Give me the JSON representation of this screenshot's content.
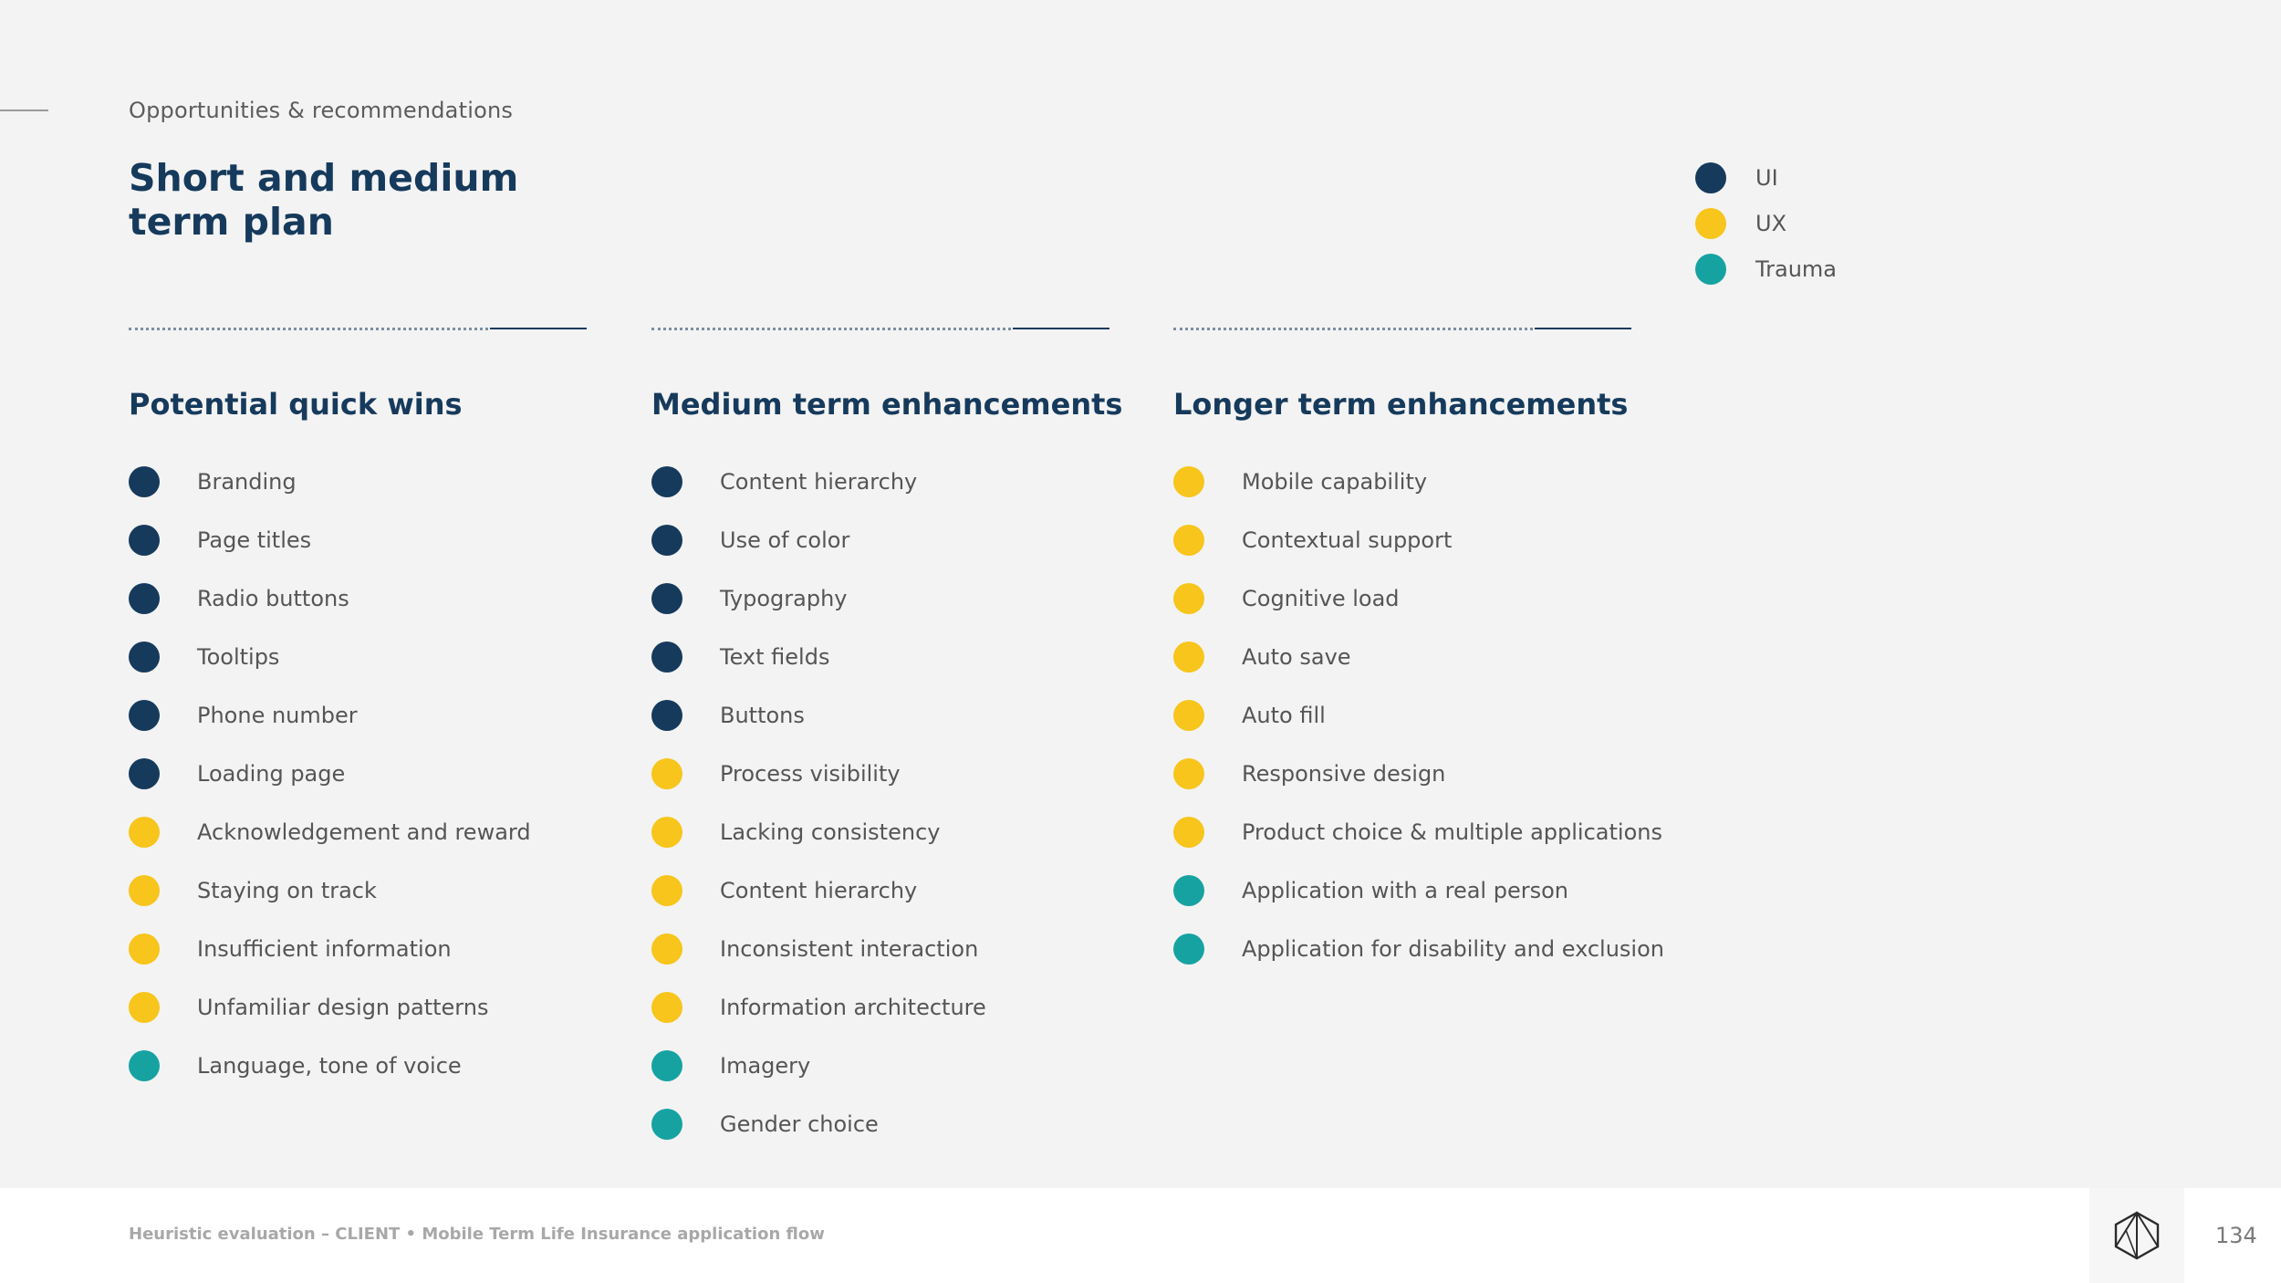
{
  "colors": {
    "UI": "#163a5c",
    "UX": "#f7c51b",
    "Trauma": "#17a2a2"
  },
  "eyebrow": "Opportunities & recommendations",
  "title_line1": "Short and medium",
  "title_line2": "term plan",
  "legend": [
    {
      "label": "UI",
      "category": "UI"
    },
    {
      "label": "UX",
      "category": "UX"
    },
    {
      "label": "Trauma",
      "category": "Trauma"
    }
  ],
  "columns": [
    {
      "heading": "Potential quick wins",
      "items": [
        {
          "label": "Branding",
          "category": "UI"
        },
        {
          "label": "Page titles",
          "category": "UI"
        },
        {
          "label": "Radio buttons",
          "category": "UI"
        },
        {
          "label": "Tooltips",
          "category": "UI"
        },
        {
          "label": "Phone number",
          "category": "UI"
        },
        {
          "label": "Loading page",
          "category": "UI"
        },
        {
          "label": "Acknowledgement and reward",
          "category": "UX"
        },
        {
          "label": "Staying on track",
          "category": "UX"
        },
        {
          "label": "Insufficient information",
          "category": "UX"
        },
        {
          "label": "Unfamiliar design patterns",
          "category": "UX"
        },
        {
          "label": "Language, tone of voice",
          "category": "Trauma"
        }
      ]
    },
    {
      "heading": "Medium term enhancements",
      "items": [
        {
          "label": "Content hierarchy",
          "category": "UI"
        },
        {
          "label": "Use of color",
          "category": "UI"
        },
        {
          "label": "Typography",
          "category": "UI"
        },
        {
          "label": "Text fields",
          "category": "UI"
        },
        {
          "label": "Buttons",
          "category": "UI"
        },
        {
          "label": "Process visibility",
          "category": "UX"
        },
        {
          "label": "Lacking consistency",
          "category": "UX"
        },
        {
          "label": "Content hierarchy",
          "category": "UX"
        },
        {
          "label": "Inconsistent interaction",
          "category": "UX"
        },
        {
          "label": "Information architecture",
          "category": "UX"
        },
        {
          "label": "Imagery",
          "category": "Trauma"
        },
        {
          "label": "Gender choice",
          "category": "Trauma"
        }
      ]
    },
    {
      "heading": "Longer term enhancements",
      "items": [
        {
          "label": "Mobile capability",
          "category": "UX"
        },
        {
          "label": "Contextual support",
          "category": "UX"
        },
        {
          "label": "Cognitive load",
          "category": "UX"
        },
        {
          "label": "Auto save",
          "category": "UX"
        },
        {
          "label": "Auto fill",
          "category": "UX"
        },
        {
          "label": "Responsive design",
          "category": "UX"
        },
        {
          "label": "Product choice & multiple applications",
          "category": "UX"
        },
        {
          "label": "Application with a real person",
          "category": "Trauma"
        },
        {
          "label": "Application for disability and exclusion",
          "category": "Trauma"
        }
      ]
    }
  ],
  "footer": {
    "text": "Heuristic evaluation – CLIENT • Mobile Term Life Insurance application flow",
    "page_number": "134",
    "logo_icon": "hexagon-logo-icon"
  }
}
